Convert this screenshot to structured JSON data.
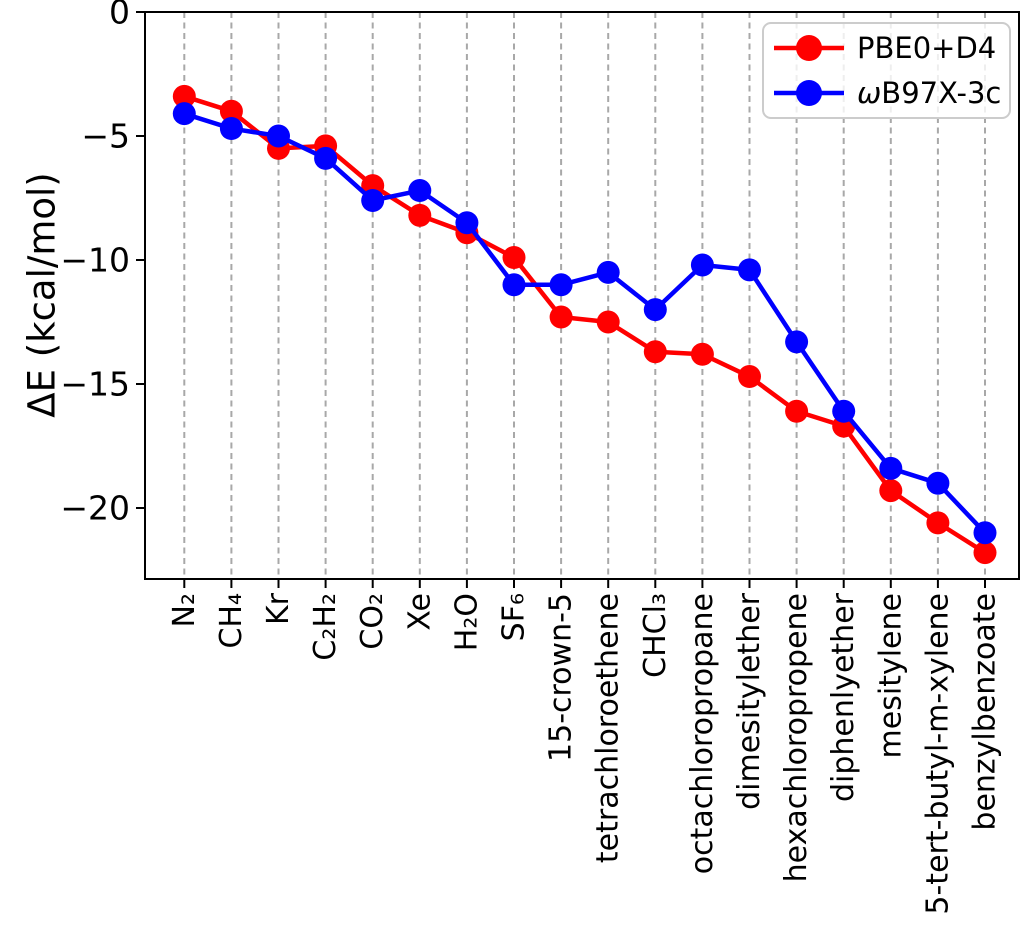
{
  "chart_data": {
    "type": "line",
    "title": "",
    "xlabel": "",
    "ylabel": "ΔE (kcal/mol)",
    "ylim": [
      -23,
      0
    ],
    "yticks": [
      0,
      -5,
      -10,
      -15,
      -20
    ],
    "ytick_labels": [
      "0",
      "−5",
      "−10",
      "−15",
      "−20"
    ],
    "grid": "vertical dashed gridlines at each category",
    "legend_position": "upper right",
    "categories": [
      "N₂",
      "CH₄",
      "Kr",
      "C₂H₂",
      "CO₂",
      "Xe",
      "H₂O",
      "SF₆",
      "15-crown-5",
      "tetrachloroethene",
      "CHCl₃",
      "octachloropropane",
      "dimesitylether",
      "hexachloropropene",
      "diphenlyether",
      "mesitylene",
      "5-tert-butyl-m-xylene",
      "benzylbenzoate"
    ],
    "series": [
      {
        "name": "PBE0+D4",
        "color": "#ff0000",
        "marker": "circle",
        "values": [
          -3.4,
          -4.0,
          -5.5,
          -5.4,
          -7.0,
          -8.2,
          -8.9,
          -9.9,
          -12.3,
          -12.5,
          -13.7,
          -13.8,
          -14.7,
          -16.1,
          -16.7,
          -19.3,
          -20.6,
          -21.8
        ]
      },
      {
        "name": "ωB97X-3c",
        "color": "#0000ff",
        "marker": "circle",
        "values": [
          -4.1,
          -4.7,
          -5.0,
          -5.9,
          -7.6,
          -7.2,
          -8.5,
          -11.0,
          -11.0,
          -10.5,
          -12.0,
          -10.2,
          -10.4,
          -13.3,
          -16.1,
          -18.4,
          -19.0,
          -21.0
        ]
      }
    ]
  },
  "colors": {
    "background": "#ffffff",
    "axis": "#000000",
    "grid": "#a8a8a8",
    "legend_border": "#cccccc",
    "series_red": "#ff0000",
    "series_blue": "#0000ff"
  }
}
